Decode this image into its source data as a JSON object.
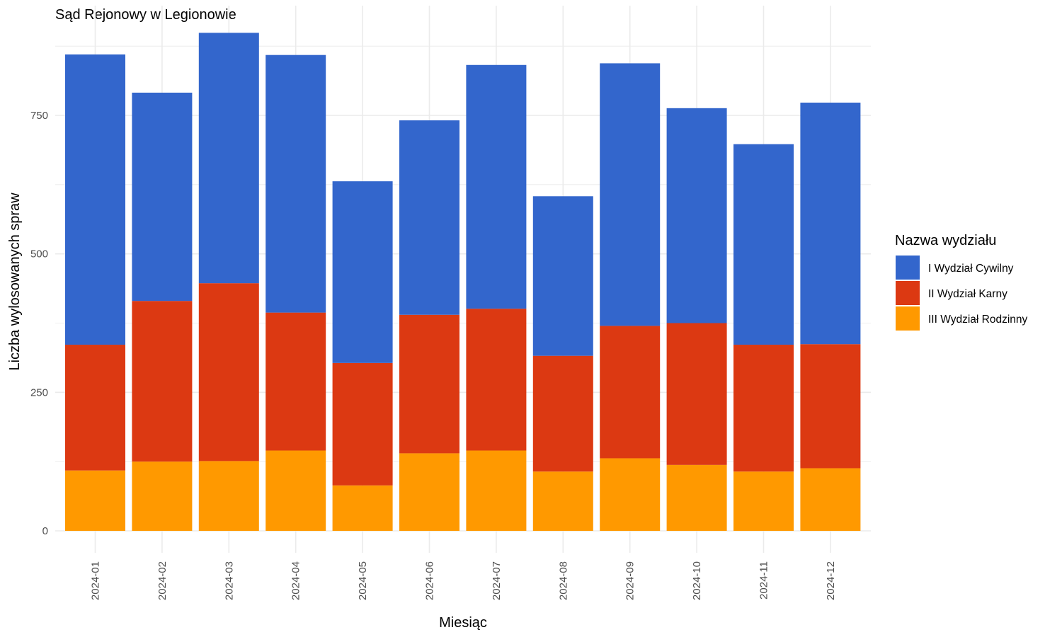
{
  "chart_data": {
    "type": "bar",
    "stacked": true,
    "title": "Sąd Rejonowy w Legionowie",
    "xlabel": "Miesiąc",
    "ylabel": "Liczba wylosowanych spraw",
    "ylim": [
      0,
      900
    ],
    "yticks": [
      0,
      250,
      500,
      750
    ],
    "ytick_labels": [
      "0",
      "250",
      "500",
      "750"
    ],
    "grid": true,
    "categories": [
      "2024-01",
      "2024-02",
      "2024-03",
      "2024-04",
      "2024-05",
      "2024-06",
      "2024-07",
      "2024-08",
      "2024-09",
      "2024-10",
      "2024-11",
      "2024-12"
    ],
    "legend": {
      "title": "Nazwa wydziału",
      "position": "right",
      "entries": [
        "I Wydział Cywilny",
        "II Wydział Karny",
        "III Wydział Rodzinny"
      ]
    },
    "series": [
      {
        "name": "III Wydział Rodzinny",
        "color": "#ff9900",
        "values": [
          109,
          125,
          126,
          145,
          82,
          140,
          145,
          107,
          131,
          119,
          107,
          113
        ]
      },
      {
        "name": "II Wydział Karny",
        "color": "#dc3912",
        "values": [
          227,
          290,
          321,
          249,
          221,
          250,
          256,
          209,
          239,
          256,
          229,
          224
        ]
      },
      {
        "name": "I Wydział Cywilny",
        "color": "#3366cc",
        "values": [
          524,
          376,
          452,
          465,
          328,
          351,
          440,
          288,
          474,
          388,
          362,
          436
        ]
      }
    ]
  }
}
